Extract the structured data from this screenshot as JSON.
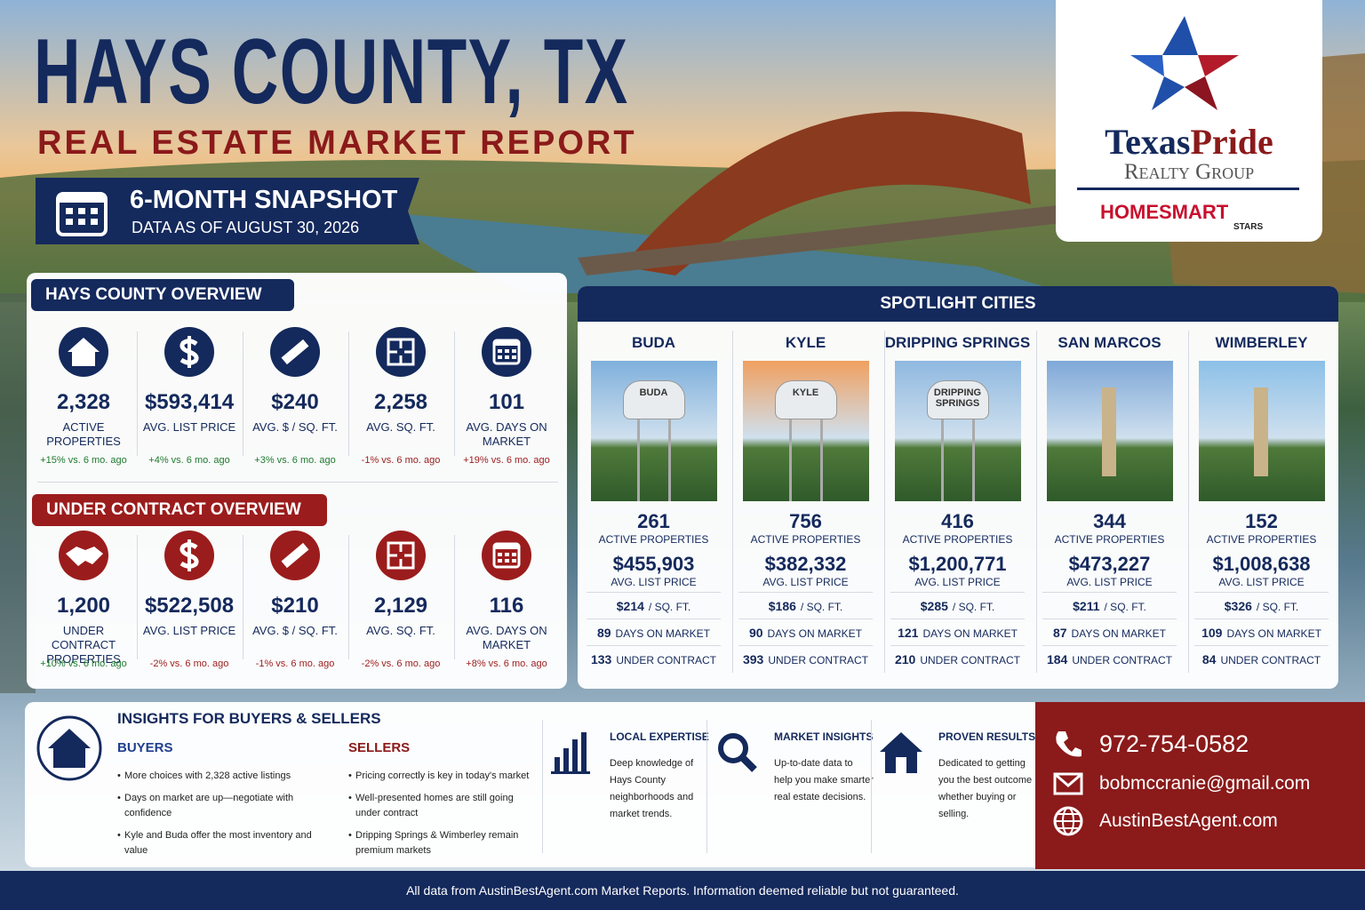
{
  "header": {
    "title": "HAYS COUNTY, TX",
    "subtitle": "REAL ESTATE MARKET REPORT",
    "snapshot_title": "6-MONTH SNAPSHOT",
    "snapshot_date": "DATA AS OF AUGUST 30, 2026"
  },
  "logo": {
    "brand_a": "Texas",
    "brand_b": "Pride",
    "group": "Realty Group",
    "partner": "HOMESMART",
    "partner_sub": "STARS"
  },
  "overview": {
    "title": "HAYS COUNTY OVERVIEW",
    "stats": [
      {
        "value": "2,328",
        "label": "ACTIVE PROPERTIES",
        "change": "+15% vs. 6 mo. ago",
        "change_color": "#1e7a2e"
      },
      {
        "value": "$593,414",
        "label": "AVG. LIST PRICE",
        "change": "+4% vs. 6 mo. ago",
        "change_color": "#1e7a2e"
      },
      {
        "value": "$240",
        "label": "AVG. $ / SQ. FT.",
        "change": "+3% vs. 6 mo. ago",
        "change_color": "#1e7a2e"
      },
      {
        "value": "2,258",
        "label": "AVG. SQ. FT.",
        "change": "-1% vs. 6 mo. ago",
        "change_color": "#9b1c1c"
      },
      {
        "value": "101",
        "label": "AVG. DAYS ON MARKET",
        "change": "+19% vs. 6 mo. ago",
        "change_color": "#9b1c1c"
      }
    ]
  },
  "under_contract": {
    "title": "UNDER CONTRACT OVERVIEW",
    "stats": [
      {
        "value": "1,200",
        "label": "UNDER CONTRACT PROPERTIES",
        "change": "+10% vs. 6 mo. ago",
        "change_color": "#1e7a2e"
      },
      {
        "value": "$522,508",
        "label": "AVG. LIST PRICE",
        "change": "-2% vs. 6 mo. ago",
        "change_color": "#9b1c1c"
      },
      {
        "value": "$210",
        "label": "AVG. $ / SQ. FT.",
        "change": "-1% vs. 6 mo. ago",
        "change_color": "#9b1c1c"
      },
      {
        "value": "2,129",
        "label": "AVG. SQ. FT.",
        "change": "-2% vs. 6 mo. ago",
        "change_color": "#9b1c1c"
      },
      {
        "value": "116",
        "label": "AVG. DAYS ON MARKET",
        "change": "+8% vs. 6 mo. ago",
        "change_color": "#9b1c1c"
      }
    ]
  },
  "spotlight": {
    "title": "SPOTLIGHT CITIES",
    "active_label": "ACTIVE PROPERTIES",
    "price_label": "AVG. LIST PRICE",
    "sqft_unit": "/ SQ. FT.",
    "dom_label": "DAYS ON MARKET",
    "uc_label": "UNDER CONTRACT",
    "cities": [
      {
        "name": "BUDA",
        "tower_label": "BUDA",
        "active": "261",
        "price": "$455,903",
        "sqft": "$214",
        "dom": "89",
        "uc": "133"
      },
      {
        "name": "KYLE",
        "tower_label": "KYLE",
        "active": "756",
        "price": "$382,332",
        "sqft": "$186",
        "dom": "90",
        "uc": "393"
      },
      {
        "name": "DRIPPING SPRINGS",
        "tower_label": "DRIPPING SPRINGS",
        "active": "416",
        "price": "$1,200,771",
        "sqft": "$285",
        "dom": "121",
        "uc": "210"
      },
      {
        "name": "SAN MARCOS",
        "active": "344",
        "price": "$473,227",
        "sqft": "$211",
        "dom": "87",
        "uc": "184"
      },
      {
        "name": "WIMBERLEY",
        "active": "152",
        "price": "$1,008,638",
        "sqft": "$326",
        "dom": "109",
        "uc": "84"
      }
    ]
  },
  "insights": {
    "title": "INSIGHTS FOR BUYERS & SELLERS",
    "buyers": {
      "title": "BUYERS",
      "items": [
        "More choices with 2,328 active listings",
        "Days on market are up—negotiate with confidence",
        "Kyle and Buda offer the most inventory and value"
      ]
    },
    "sellers": {
      "title": "SELLERS",
      "items": [
        "Pricing correctly is key in today's market",
        "Well-presented homes are still going under contract",
        "Dripping Springs & Wimberley remain premium markets"
      ]
    },
    "features": [
      {
        "title": "LOCAL EXPERTISE",
        "text": "Deep knowledge of Hays County neighborhoods and market trends."
      },
      {
        "title": "MARKET INSIGHTS",
        "text": "Up-to-date data to help you make smarter real estate decisions."
      },
      {
        "title": "PROVEN RESULTS",
        "text": "Dedicated to getting you the best outcome whether buying or selling."
      }
    ]
  },
  "contact": {
    "phone": "972-754-0582",
    "email": "bobmccranie@gmail.com",
    "website": "AustinBestAgent.com"
  },
  "footer": {
    "text": "All data from AustinBestAgent.com Market Reports. Information deemed reliable but not guaranteed."
  }
}
